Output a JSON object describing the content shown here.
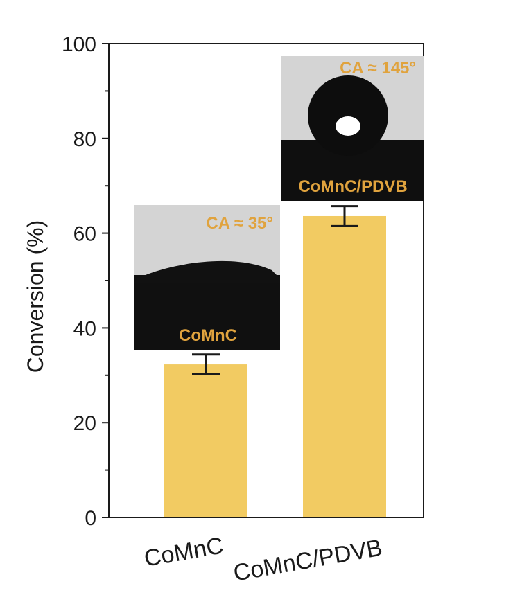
{
  "chart_data": {
    "type": "bar",
    "categories": [
      "CoMnC",
      "CoMnC/PDVB"
    ],
    "values": [
      32.3,
      63.6
    ],
    "error": [
      2.1,
      2.1
    ],
    "ylabel": "Conversion (%)",
    "xlabel": "",
    "ylim": [
      0,
      100
    ],
    "yticks": [
      0,
      20,
      40,
      60,
      80,
      100
    ],
    "grid": false,
    "colors": {
      "bar": "#F2CB62",
      "error_bar": "#1a1a1a",
      "axis": "#1a1a1a",
      "inset_text": "#E0A33E"
    },
    "insets": [
      {
        "category": "CoMnC",
        "contact_angle_label": "CA ≈ 35°",
        "sample_label": "CoMnC",
        "droplet": "flat"
      },
      {
        "category": "CoMnC/PDVB",
        "contact_angle_label": "CA ≈ 145°",
        "sample_label": "CoMnC/PDVB",
        "droplet": "spherical"
      }
    ]
  }
}
